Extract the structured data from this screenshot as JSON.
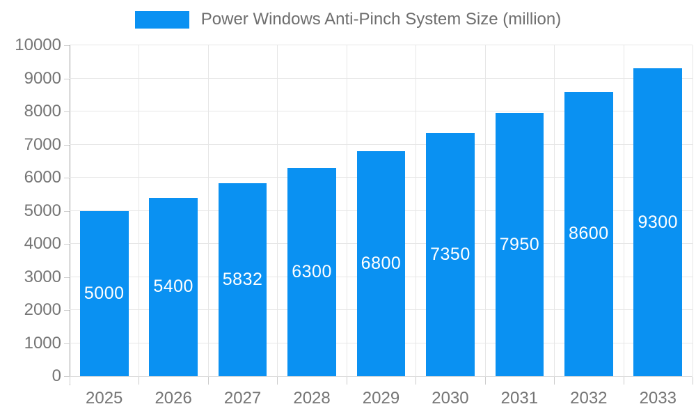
{
  "chart_data": {
    "type": "bar",
    "title": "Power Windows Anti-Pinch System Size (million)",
    "categories": [
      "2025",
      "2026",
      "2027",
      "2028",
      "2029",
      "2030",
      "2031",
      "2032",
      "2033"
    ],
    "series": [
      {
        "name": "Power Windows Anti-Pinch System Size (million)",
        "values": [
          5000,
          5400,
          5832,
          6300,
          6800,
          7350,
          7950,
          8600,
          9300
        ]
      }
    ],
    "xlabel": "",
    "ylabel": "",
    "ylim": [
      0,
      10000
    ],
    "y_tick_step": 1000,
    "y_tick_labels": [
      "0",
      "1000",
      "2000",
      "3000",
      "4000",
      "5000",
      "6000",
      "7000",
      "8000",
      "9000",
      "10000"
    ],
    "grid": true,
    "legend_position": "top-center",
    "bar_labels_visible": true,
    "bar_label_position": "inside-center"
  },
  "legend": {
    "label": "Power Windows Anti-Pinch System Size (million)"
  },
  "colors": {
    "bar": "#0a91f2",
    "bar_label_text": "#ffffff",
    "axis_text": "#757575",
    "legend_text": "#6e6e6e",
    "gridline": "#e6e6e6",
    "y_axis_line": "#999999",
    "x_axis_line": "#dcdcdc",
    "tick": "#cccccc",
    "background": "#ffffff"
  }
}
